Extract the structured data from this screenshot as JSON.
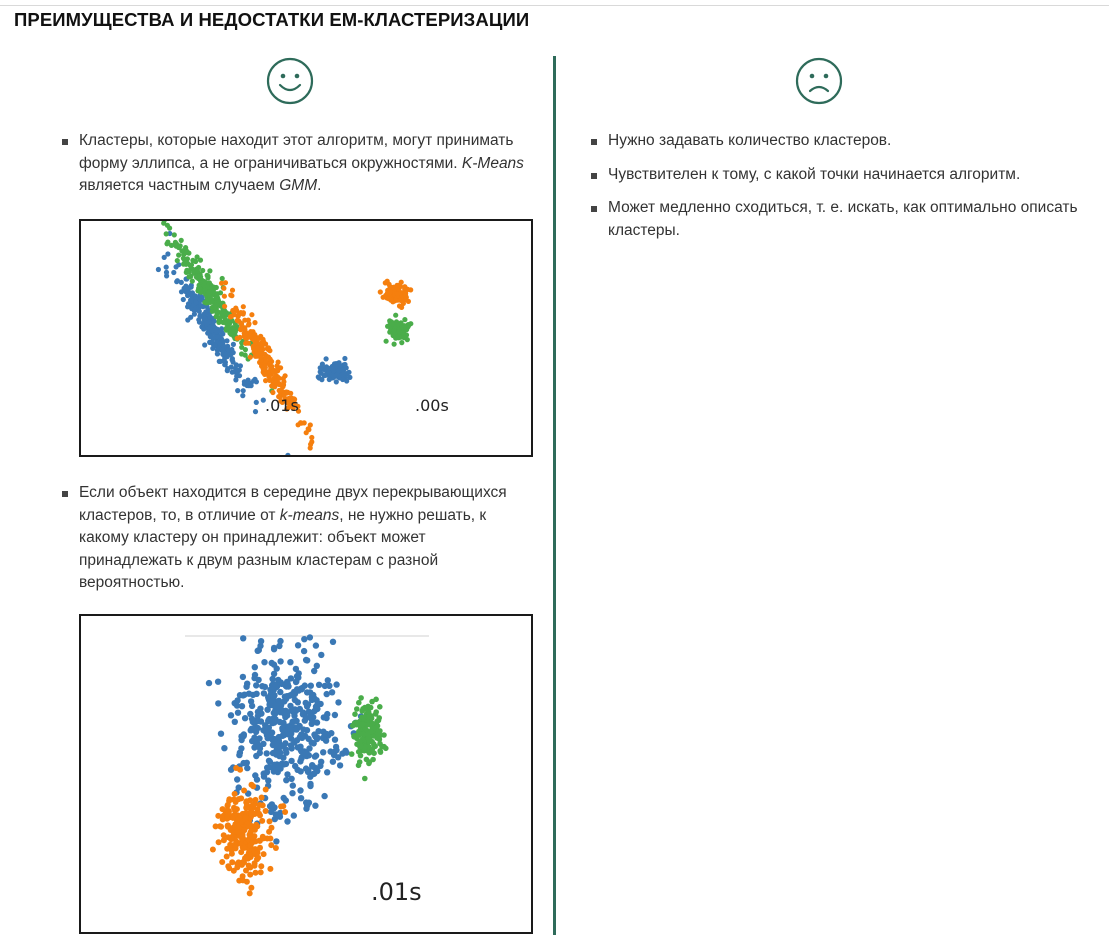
{
  "title": "ПРЕИМУЩЕСТВА И НЕДОСТАТКИ ЕМ-КЛАСТЕРИЗАЦИИ",
  "colors": {
    "divider": "#2e6b5a",
    "face": "#2e6b5a",
    "blue": "#3a78b5",
    "orange": "#f57f0e",
    "green": "#4aad4a"
  },
  "pros": {
    "icon": "smiley-face-icon",
    "item1": {
      "part1": "Кластеры, которые находит этот алгоритм, могут принимать форму эллипса, а не ограничиваться окружностями. ",
      "kmeans": "K-Means",
      "part2": " является частным случаем ",
      "gmm": "GMM",
      "part3": "."
    },
    "plot1": {
      "label_left": ".01s",
      "label_right": ".00s"
    },
    "item2": {
      "part1": "Если объект находится в середине двух перекрывающихся кластеров, то, в отличие от ",
      "kmeans": "k-means",
      "part2": ", не нужно решать, к какому кластеру он принадлежит: объект может принадлежать к двум разным кластерам с разной вероятностью."
    },
    "plot2": {
      "label": ".01s"
    }
  },
  "cons": {
    "icon": "sad-face-icon",
    "items": [
      "Нужно задавать количество кластеров.",
      "Чувствителен к тому, с какой точки начинается алгоритм.",
      "Может медленно сходиться, т. е. искать, как оптимально описать кластеры."
    ]
  }
}
